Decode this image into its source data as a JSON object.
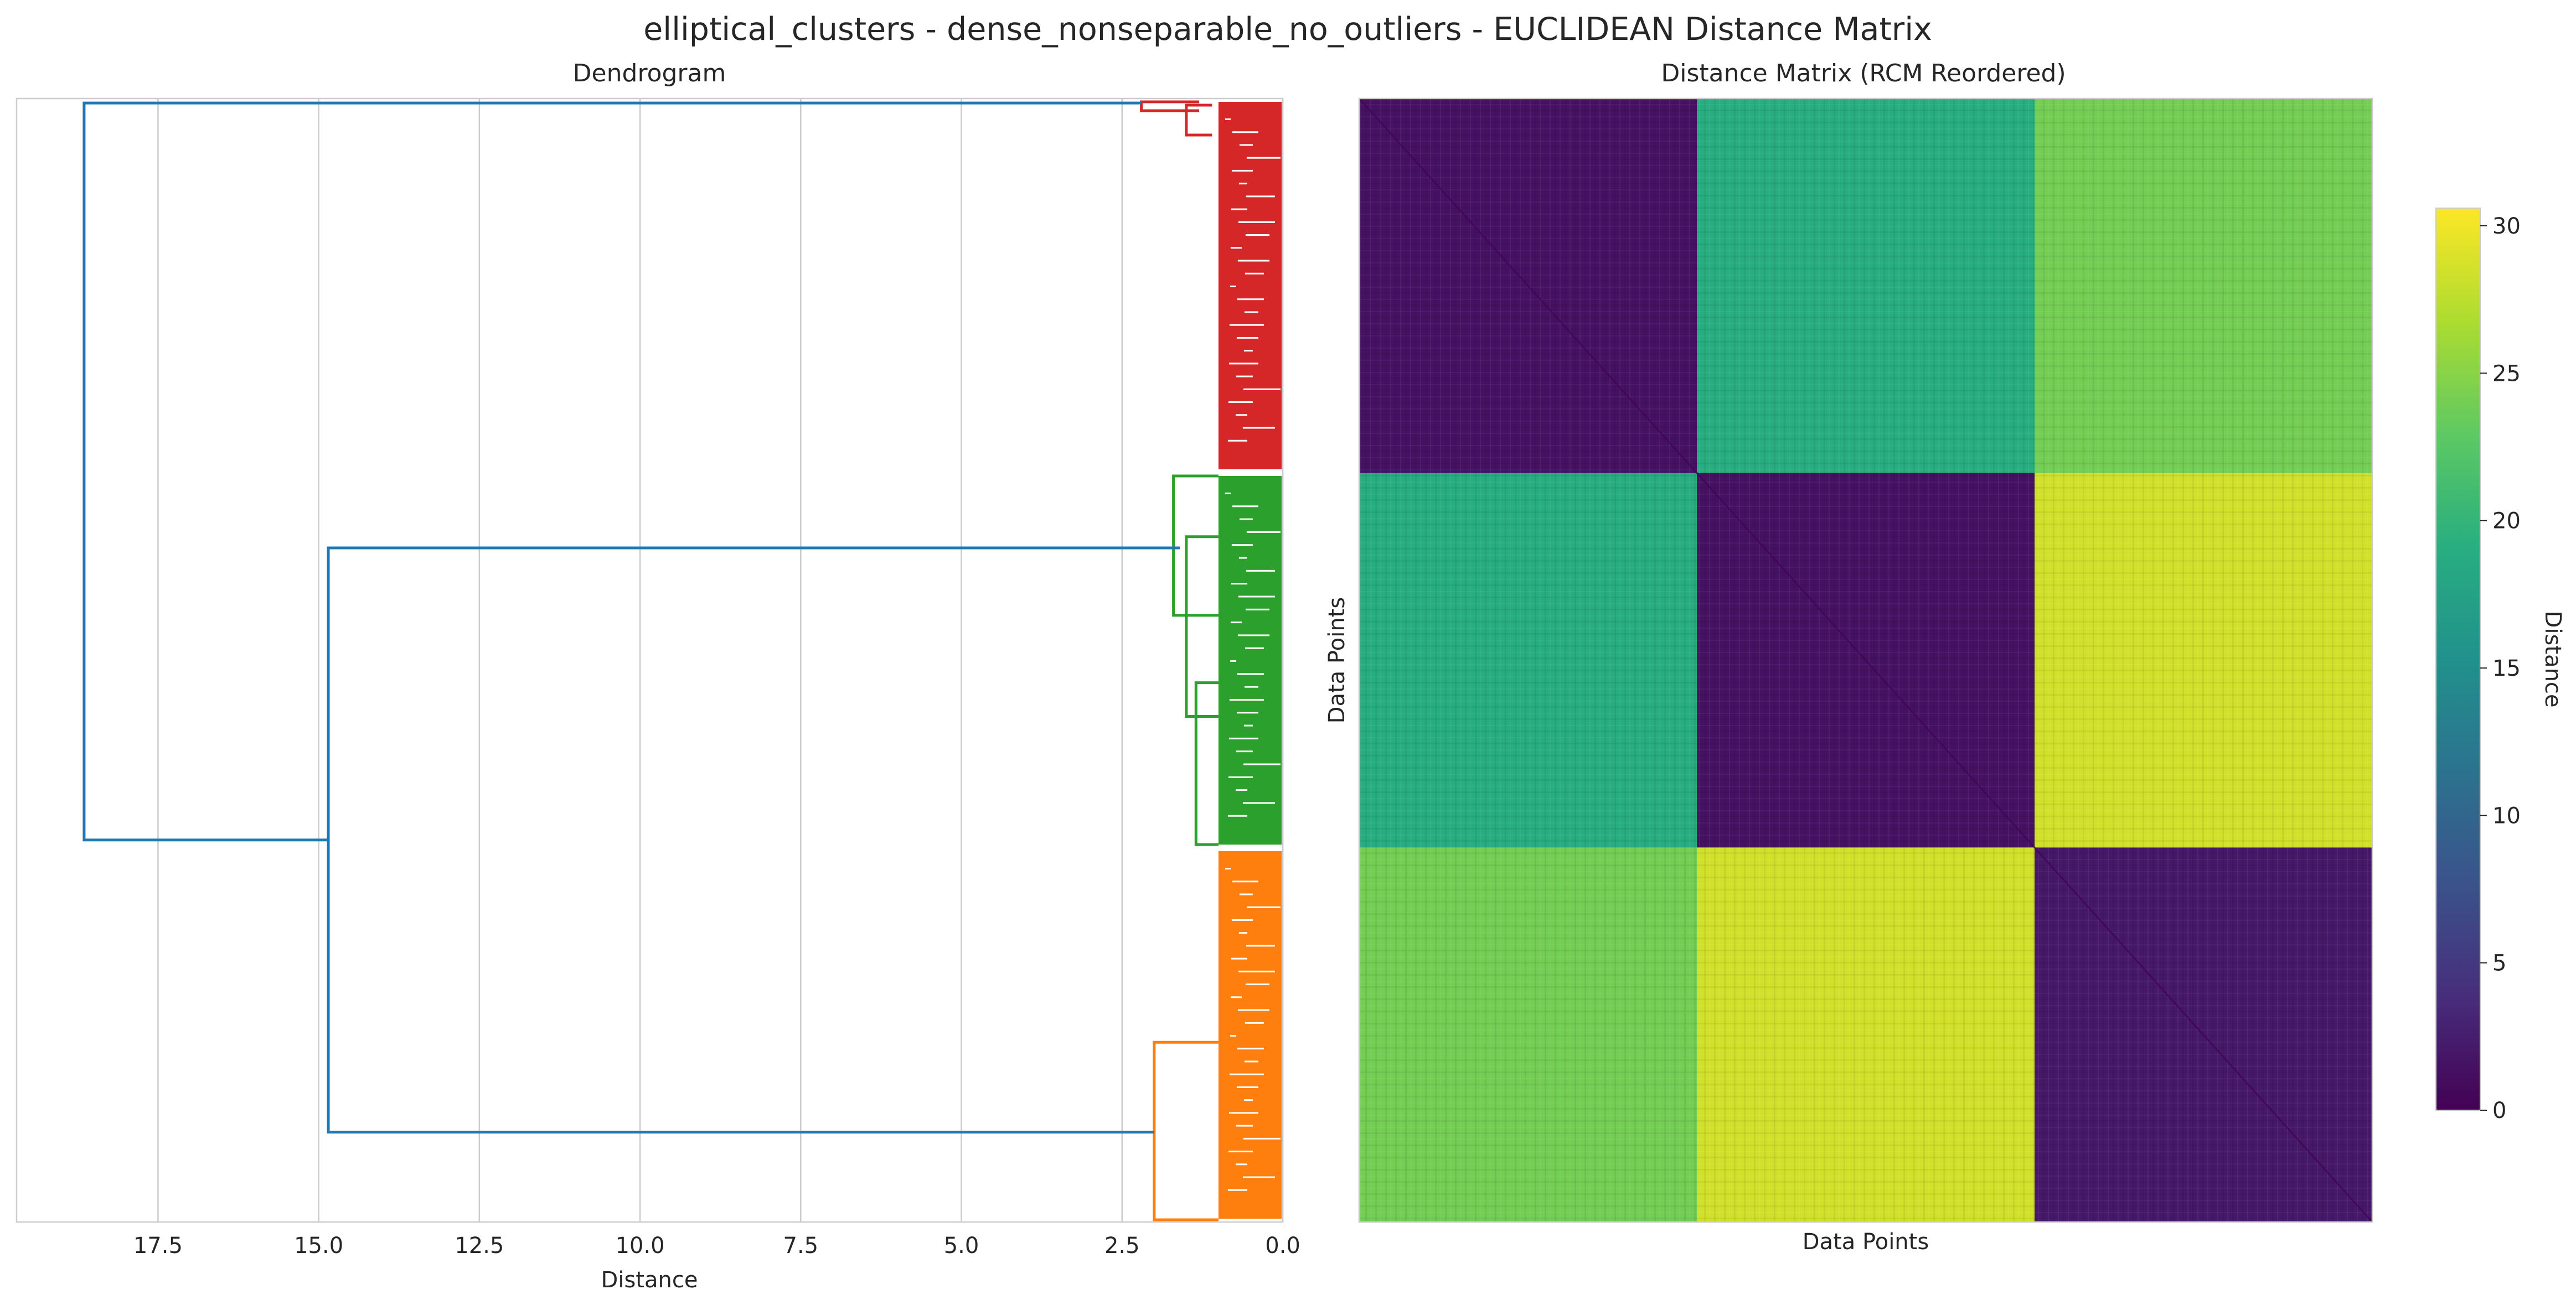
{
  "figure_title": "elliptical_clusters - dense_nonseparable_no_outliers - EUCLIDEAN Distance Matrix",
  "colors": {
    "cluster_1": "#d62728",
    "cluster_2": "#2ca02c",
    "cluster_3": "#ff7f0e",
    "link": "#1f77b4",
    "grid": "#cccccc"
  },
  "chart_data": [
    {
      "type": "dendrogram",
      "title": "Dendrogram",
      "xlabel": "Distance",
      "ylabel": "",
      "orientation": "left",
      "xlim": [
        19.7,
        0.0
      ],
      "xticks": [
        17.5,
        15.0,
        12.5,
        10.0,
        7.5,
        5.0,
        2.5,
        0.0
      ],
      "xtick_labels": [
        "17.5",
        "15.0",
        "12.5",
        "10.0",
        "7.5",
        "5.0",
        "2.5",
        "0.0"
      ],
      "grid": true,
      "clusters": [
        {
          "name": "cluster-red",
          "color": "#d62728",
          "merge_height": 2.2,
          "leaf_fraction": [
            0.0,
            0.333
          ]
        },
        {
          "name": "cluster-green",
          "color": "#2ca02c",
          "merge_height": 1.7,
          "leaf_fraction": [
            0.333,
            0.667
          ]
        },
        {
          "name": "cluster-orange",
          "color": "#ff7f0e",
          "merge_height": 2.0,
          "leaf_fraction": [
            0.667,
            1.0
          ]
        }
      ],
      "top_links": [
        {
          "height": 14.85,
          "joins": [
            "cluster-green",
            "cluster-orange"
          ]
        },
        {
          "height": 18.65,
          "joins": [
            "cluster-red",
            "green+orange"
          ]
        }
      ]
    },
    {
      "type": "heatmap",
      "title": "Distance Matrix (RCM Reordered)",
      "xlabel": "Data Points",
      "ylabel": "Data Points",
      "colormap": "viridis",
      "block_values": [
        [
          1.5,
          19.0,
          24.0
        ],
        [
          19.0,
          1.5,
          28.5
        ],
        [
          24.0,
          28.5,
          2.0
        ]
      ],
      "colorbar": {
        "label": "Distance",
        "range": [
          0,
          30.6
        ],
        "ticks": [
          0,
          5,
          10,
          15,
          20,
          25,
          30
        ],
        "tick_labels": [
          "0",
          "5",
          "10",
          "15",
          "20",
          "25",
          "30"
        ]
      }
    }
  ]
}
